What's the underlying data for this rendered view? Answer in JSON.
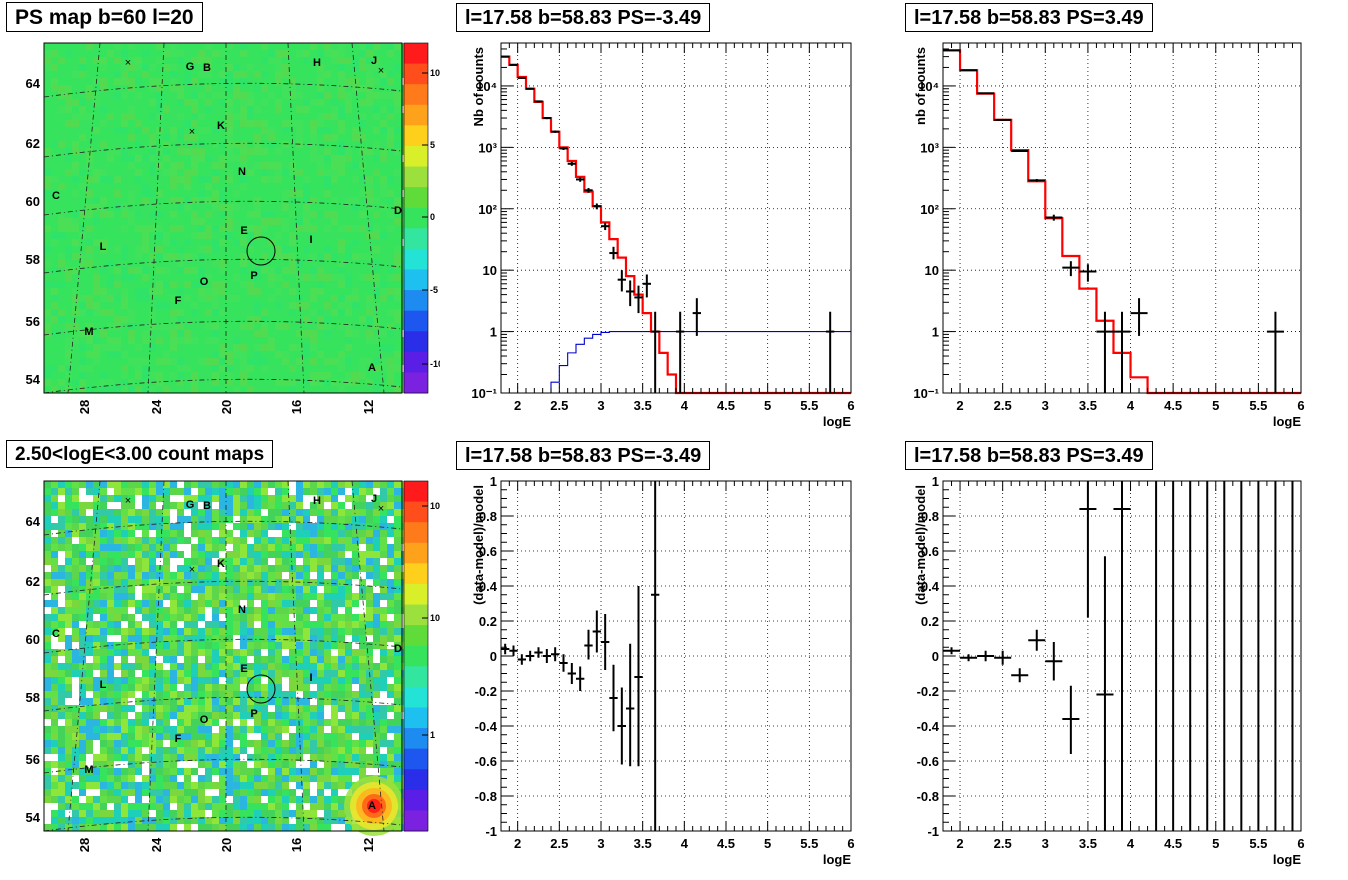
{
  "panels": {
    "map1": {
      "title": "PS map b=60 l=20",
      "lat_ticks": [
        "64",
        "62",
        "60",
        "58",
        "56",
        "54"
      ],
      "lon_ticks": [
        "28",
        "24",
        "20",
        "16",
        "12"
      ],
      "scale_ticks": [
        "10",
        "5",
        "0",
        "-5",
        "-10"
      ],
      "sources": [
        {
          "label": "G"
        },
        {
          "label": "B"
        },
        {
          "label": "H"
        },
        {
          "label": "J"
        },
        {
          "label": "K"
        },
        {
          "label": "N"
        },
        {
          "label": "C"
        },
        {
          "label": "D"
        },
        {
          "label": "E"
        },
        {
          "label": "I"
        },
        {
          "label": "L"
        },
        {
          "label": "P"
        },
        {
          "label": "O"
        },
        {
          "label": "F"
        },
        {
          "label": "M"
        },
        {
          "label": "A"
        }
      ]
    },
    "spec1": {
      "title": "l=17.58 b=58.83 PS=-3.49",
      "ylabel": "Nb of counts",
      "xlabel": "logE"
    },
    "spec2": {
      "title": "l=17.58 b=58.83 PS=3.49",
      "ylabel": "nb of counts",
      "xlabel": "logE"
    },
    "map2": {
      "title": "2.50<logE<3.00 count maps",
      "scale_ticks": [
        "10²",
        "10",
        "1"
      ]
    },
    "res1": {
      "title": "l=17.58 b=58.83 PS=-3.49",
      "ylabel": "(data-model)/model",
      "xlabel": "logE"
    },
    "res2": {
      "title": "l=17.58 b=58.83 PS=3.49",
      "ylabel": "(data-model)/model",
      "xlabel": "logE"
    }
  },
  "chart_data": [
    {
      "type": "heatmap",
      "title": "PS map b=60 l=20",
      "xlabel": "",
      "ylabel": "",
      "x_ticks": [
        28,
        24,
        20,
        16,
        12
      ],
      "y_ticks": [
        54,
        56,
        58,
        60,
        62,
        64
      ],
      "zlim": [
        -12,
        12
      ],
      "field_value": 0,
      "colors": {
        "field": "#35e35c",
        "high": "#ff2020",
        "low": "#6a1ee6"
      }
    },
    {
      "type": "line",
      "title": "l=17.58 b=58.83 PS=-3.49",
      "xlabel": "logE",
      "ylabel": "Nb of counts",
      "xlim": [
        1.8,
        6.0
      ],
      "ylim": [
        0.1,
        50000
      ],
      "log_y": true,
      "grid": true,
      "x_ticks": [
        2,
        2.5,
        3,
        3.5,
        4,
        4.5,
        5,
        5.5,
        6
      ],
      "y_ticks": [
        {
          "v": 0.1,
          "t": "10⁻¹"
        },
        {
          "v": 1,
          "t": "1"
        },
        {
          "v": 10,
          "t": "10"
        },
        {
          "v": 100,
          "t": "10²"
        },
        {
          "v": 1000,
          "t": "10³"
        },
        {
          "v": 10000,
          "t": "10⁴"
        }
      ],
      "x_edges": [
        1.8,
        1.9,
        2.0,
        2.1,
        2.2,
        2.3,
        2.4,
        2.5,
        2.6,
        2.7,
        2.8,
        2.9,
        3.0,
        3.1,
        3.2,
        3.3,
        3.4,
        3.5,
        3.6,
        3.7,
        3.8,
        3.9,
        4.0,
        4.1,
        4.2,
        4.3,
        4.4,
        4.5,
        4.6,
        4.7,
        4.8,
        4.9,
        5.0,
        5.1,
        5.2,
        5.3,
        5.4,
        5.5,
        5.6,
        5.7,
        5.8,
        5.9,
        6.0
      ],
      "series": [
        {
          "name": "model",
          "color": "#ff0000",
          "style": "step",
          "values": [
            30000,
            22000,
            14000,
            9000,
            5500,
            3000,
            1800,
            1000,
            600,
            330,
            190,
            110,
            60,
            32,
            16,
            8,
            4,
            2,
            1,
            0.45,
            0.2,
            0.1,
            0.1,
            0.1,
            0.1,
            0.1,
            0.1,
            0.1,
            0.1,
            0.1,
            0.1,
            0.1,
            0.1,
            0.1,
            0.1,
            0.1,
            0.1,
            0.1,
            0.1,
            0.1,
            0.1,
            0.1
          ]
        },
        {
          "color": "#0000cc",
          "style": "step",
          "values": [
            0.1,
            0.1,
            0.1,
            0.1,
            0.1,
            0.1,
            0.15,
            0.28,
            0.45,
            0.62,
            0.78,
            0.9,
            0.97,
            1.0,
            1,
            1,
            1,
            1,
            1,
            1,
            1,
            1,
            1,
            1,
            1,
            1,
            1,
            1,
            1,
            1,
            1,
            1,
            1,
            1,
            1,
            1,
            1,
            1,
            1,
            1,
            1,
            1
          ]
        },
        {
          "name": "data",
          "color": "#000000",
          "style": "errorbar",
          "points": [
            {
              "x": 1.85,
              "y": 30000,
              "dx": 0.05,
              "lo": 29400,
              "hi": 30600
            },
            {
              "x": 1.95,
              "y": 22000,
              "dx": 0.05,
              "lo": 21500,
              "hi": 22500
            },
            {
              "x": 2.05,
              "y": 13500,
              "dx": 0.05,
              "lo": 13100,
              "hi": 13900
            },
            {
              "x": 2.15,
              "y": 9000,
              "dx": 0.05,
              "lo": 8700,
              "hi": 9300
            },
            {
              "x": 2.25,
              "y": 5600,
              "dx": 0.05,
              "lo": 5400,
              "hi": 5800
            },
            {
              "x": 2.35,
              "y": 3000,
              "dx": 0.05,
              "lo": 2880,
              "hi": 3120
            },
            {
              "x": 2.45,
              "y": 1800,
              "dx": 0.05,
              "lo": 1720,
              "hi": 1880
            },
            {
              "x": 2.55,
              "y": 960,
              "dx": 0.05,
              "lo": 905,
              "hi": 1015
            },
            {
              "x": 2.65,
              "y": 540,
              "dx": 0.05,
              "lo": 500,
              "hi": 580
            },
            {
              "x": 2.75,
              "y": 300,
              "dx": 0.05,
              "lo": 275,
              "hi": 325
            },
            {
              "x": 2.85,
              "y": 200,
              "dx": 0.05,
              "lo": 182,
              "hi": 218
            },
            {
              "x": 2.95,
              "y": 110,
              "dx": 0.05,
              "lo": 98,
              "hi": 122
            },
            {
              "x": 3.05,
              "y": 52,
              "dx": 0.05,
              "lo": 45,
              "hi": 59
            },
            {
              "x": 3.15,
              "y": 19,
              "dx": 0.05,
              "lo": 15,
              "hi": 24
            },
            {
              "x": 3.25,
              "y": 7,
              "dx": 0.05,
              "lo": 4.5,
              "hi": 10
            },
            {
              "x": 3.35,
              "y": 4.5,
              "dx": 0.05,
              "lo": 2.6,
              "hi": 6.8
            },
            {
              "x": 3.45,
              "y": 3.6,
              "dx": 0.05,
              "lo": 2.0,
              "hi": 5.6
            },
            {
              "x": 3.55,
              "y": 6,
              "dx": 0.05,
              "lo": 3.6,
              "hi": 8.5
            },
            {
              "x": 3.65,
              "y": 1,
              "dx": 0.05,
              "lo": 0.1,
              "hi": 2.1
            },
            {
              "x": 3.95,
              "y": 1,
              "dx": 0.05,
              "lo": 0.1,
              "hi": 2.1
            },
            {
              "x": 4.15,
              "y": 2,
              "dx": 0.05,
              "lo": 0.85,
              "hi": 3.5
            },
            {
              "x": 5.75,
              "y": 1,
              "dx": 0.05,
              "lo": 0.1,
              "hi": 2.1
            }
          ]
        }
      ]
    },
    {
      "type": "line",
      "title": "l=17.58 b=58.83 PS=3.49",
      "xlabel": "logE",
      "ylabel": "nb of counts",
      "xlim": [
        1.8,
        6.0
      ],
      "ylim": [
        0.1,
        50000
      ],
      "log_y": true,
      "grid": true,
      "x_ticks": [
        2,
        2.5,
        3,
        3.5,
        4,
        4.5,
        5,
        5.5,
        6
      ],
      "y_ticks": [
        {
          "v": 0.1,
          "t": "10⁻¹"
        },
        {
          "v": 1,
          "t": "1"
        },
        {
          "v": 10,
          "t": "10"
        },
        {
          "v": 100,
          "t": "10²"
        },
        {
          "v": 1000,
          "t": "10³"
        },
        {
          "v": 10000,
          "t": "10⁴"
        }
      ],
      "x_edges": [
        1.8,
        2.0,
        2.2,
        2.4,
        2.6,
        2.8,
        3.0,
        3.2,
        3.4,
        3.6,
        3.8,
        4.0,
        4.2,
        4.4,
        4.6,
        4.8,
        5.0,
        5.2,
        5.4,
        5.6,
        5.8,
        6.0
      ],
      "series": [
        {
          "name": "model",
          "color": "#ff0000",
          "style": "step",
          "values": [
            38000,
            18000,
            7500,
            2800,
            900,
            280,
            70,
            17,
            5,
            1.5,
            0.45,
            0.18,
            0.1,
            0.1,
            0.1,
            0.1,
            0.1,
            0.1,
            0.1,
            0.1,
            0.1
          ]
        },
        {
          "name": "data",
          "color": "#000000",
          "style": "errorbar",
          "points": [
            {
              "x": 1.9,
              "y": 38000,
              "dx": 0.1,
              "lo": 37600,
              "hi": 38400
            },
            {
              "x": 2.1,
              "y": 18000,
              "dx": 0.1,
              "lo": 17700,
              "hi": 18300
            },
            {
              "x": 2.3,
              "y": 7600,
              "dx": 0.1,
              "lo": 7400,
              "hi": 7800
            },
            {
              "x": 2.5,
              "y": 2800,
              "dx": 0.1,
              "lo": 2700,
              "hi": 2900
            },
            {
              "x": 2.7,
              "y": 870,
              "dx": 0.1,
              "lo": 840,
              "hi": 900
            },
            {
              "x": 2.9,
              "y": 290,
              "dx": 0.1,
              "lo": 275,
              "hi": 305
            },
            {
              "x": 3.1,
              "y": 72,
              "dx": 0.1,
              "lo": 64,
              "hi": 80
            },
            {
              "x": 3.3,
              "y": 11,
              "dx": 0.1,
              "lo": 8,
              "hi": 14
            },
            {
              "x": 3.5,
              "y": 9.5,
              "dx": 0.1,
              "lo": 6.5,
              "hi": 12.5
            },
            {
              "x": 3.7,
              "y": 1,
              "dx": 0.1,
              "lo": 0.1,
              "hi": 2.1
            },
            {
              "x": 3.9,
              "y": 1,
              "dx": 0.1,
              "lo": 0.1,
              "hi": 2.1
            },
            {
              "x": 4.1,
              "y": 2,
              "dx": 0.1,
              "lo": 0.85,
              "hi": 3.5
            },
            {
              "x": 5.7,
              "y": 1,
              "dx": 0.1,
              "lo": 0.1,
              "hi": 2.1
            }
          ]
        }
      ]
    },
    {
      "type": "heatmap",
      "title": "2.50<logE<3.00 count maps",
      "xlabel": "",
      "ylabel": "",
      "x_ticks": [
        28,
        24,
        20,
        16,
        12
      ],
      "y_ticks": [
        54,
        56,
        58,
        60,
        62,
        64
      ],
      "zlim": [
        0.1,
        300
      ],
      "log_z": true,
      "hotspots": [
        {
          "label": "A",
          "lon": 12.3,
          "lat": 54.6,
          "value": 200
        }
      ],
      "colors": {
        "field": "#43d35a",
        "high": "#ff2020",
        "low": "#6a1ee6"
      }
    },
    {
      "type": "scatter",
      "title": "l=17.58 b=58.83 PS=-3.49",
      "xlabel": "logE",
      "ylabel": "(data-model)/model",
      "xlim": [
        1.8,
        6.0
      ],
      "ylim": [
        -1,
        1
      ],
      "grid": true,
      "x_ticks": [
        2,
        2.5,
        3,
        3.5,
        4,
        4.5,
        5,
        5.5,
        6
      ],
      "y_ticks": [
        -1,
        -0.8,
        -0.6,
        -0.4,
        -0.2,
        0,
        0.2,
        0.4,
        0.6,
        0.8,
        1
      ],
      "points": [
        {
          "x": 1.85,
          "y": 0.04,
          "dx": 0.05,
          "lo": 0.01,
          "hi": 0.07
        },
        {
          "x": 1.95,
          "y": 0.03,
          "dx": 0.05,
          "lo": 0.0,
          "hi": 0.06
        },
        {
          "x": 2.05,
          "y": -0.02,
          "dx": 0.05,
          "lo": -0.05,
          "hi": 0.01
        },
        {
          "x": 2.15,
          "y": 0.0,
          "dx": 0.05,
          "lo": -0.03,
          "hi": 0.03
        },
        {
          "x": 2.25,
          "y": 0.02,
          "dx": 0.05,
          "lo": -0.01,
          "hi": 0.05
        },
        {
          "x": 2.35,
          "y": 0.0,
          "dx": 0.05,
          "lo": -0.04,
          "hi": 0.04
        },
        {
          "x": 2.45,
          "y": 0.01,
          "dx": 0.05,
          "lo": -0.03,
          "hi": 0.05
        },
        {
          "x": 2.55,
          "y": -0.04,
          "dx": 0.05,
          "lo": -0.09,
          "hi": 0.01
        },
        {
          "x": 2.65,
          "y": -0.1,
          "dx": 0.05,
          "lo": -0.16,
          "hi": -0.04
        },
        {
          "x": 2.75,
          "y": -0.13,
          "dx": 0.05,
          "lo": -0.2,
          "hi": -0.06
        },
        {
          "x": 2.85,
          "y": 0.06,
          "dx": 0.05,
          "lo": -0.02,
          "hi": 0.15
        },
        {
          "x": 2.95,
          "y": 0.14,
          "dx": 0.05,
          "lo": 0.02,
          "hi": 0.26
        },
        {
          "x": 3.05,
          "y": 0.08,
          "dx": 0.05,
          "lo": -0.08,
          "hi": 0.24
        },
        {
          "x": 3.15,
          "y": -0.24,
          "dx": 0.05,
          "lo": -0.43,
          "hi": -0.05
        },
        {
          "x": 3.25,
          "y": -0.4,
          "dx": 0.05,
          "lo": -0.62,
          "hi": -0.18
        },
        {
          "x": 3.35,
          "y": -0.3,
          "dx": 0.05,
          "lo": -0.63,
          "hi": 0.07
        },
        {
          "x": 3.45,
          "y": -0.12,
          "dx": 0.05,
          "lo": -0.63,
          "hi": 0.4
        },
        {
          "x": 3.65,
          "y": 0.35,
          "dx": 0.05,
          "lo": -1.0,
          "hi": 1.0
        }
      ]
    },
    {
      "type": "scatter",
      "title": "l=17.58 b=58.83 PS=3.49",
      "xlabel": "logE",
      "ylabel": "(data-model)/model",
      "xlim": [
        1.8,
        6.0
      ],
      "ylim": [
        -1,
        1
      ],
      "grid": true,
      "x_ticks": [
        2,
        2.5,
        3,
        3.5,
        4,
        4.5,
        5,
        5.5,
        6
      ],
      "y_ticks": [
        -1,
        -0.8,
        -0.6,
        -0.4,
        -0.2,
        0,
        0.2,
        0.4,
        0.6,
        0.8,
        1
      ],
      "points": [
        {
          "x": 1.9,
          "y": 0.03,
          "dx": 0.1,
          "lo": 0.01,
          "hi": 0.05
        },
        {
          "x": 2.1,
          "y": -0.01,
          "dx": 0.1,
          "lo": -0.03,
          "hi": 0.01
        },
        {
          "x": 2.3,
          "y": 0.0,
          "dx": 0.1,
          "lo": -0.03,
          "hi": 0.03
        },
        {
          "x": 2.5,
          "y": -0.01,
          "dx": 0.1,
          "lo": -0.05,
          "hi": 0.03
        },
        {
          "x": 2.7,
          "y": -0.11,
          "dx": 0.1,
          "lo": -0.15,
          "hi": -0.07
        },
        {
          "x": 2.9,
          "y": 0.09,
          "dx": 0.1,
          "lo": 0.03,
          "hi": 0.15
        },
        {
          "x": 3.1,
          "y": -0.03,
          "dx": 0.1,
          "lo": -0.14,
          "hi": 0.08
        },
        {
          "x": 3.3,
          "y": -0.36,
          "dx": 0.1,
          "lo": -0.56,
          "hi": -0.17
        },
        {
          "x": 3.5,
          "y": 0.84,
          "dx": 0.1,
          "lo": 0.22,
          "hi": 1.0
        },
        {
          "x": 3.7,
          "y": -0.22,
          "dx": 0.1,
          "lo": -1.0,
          "hi": 0.57
        },
        {
          "x": 3.9,
          "y": 0.84,
          "dx": 0.1,
          "lo": -1.0,
          "hi": 1.0
        },
        {
          "x": 4.3,
          "y": 1.0,
          "dx": 0.0,
          "lo": -1.0,
          "hi": 1.0
        },
        {
          "x": 4.5,
          "y": 1.0,
          "dx": 0.0,
          "lo": -1.0,
          "hi": 1.0
        },
        {
          "x": 4.7,
          "y": 1.0,
          "dx": 0.0,
          "lo": -1.0,
          "hi": 1.0
        },
        {
          "x": 4.9,
          "y": 1.0,
          "dx": 0.0,
          "lo": -1.0,
          "hi": 1.0
        },
        {
          "x": 5.1,
          "y": 1.0,
          "dx": 0.0,
          "lo": -1.0,
          "hi": 1.0
        },
        {
          "x": 5.3,
          "y": 1.0,
          "dx": 0.0,
          "lo": -1.0,
          "hi": 1.0
        },
        {
          "x": 5.5,
          "y": 1.0,
          "dx": 0.0,
          "lo": -1.0,
          "hi": 1.0
        },
        {
          "x": 5.7,
          "y": 1.0,
          "dx": 0.0,
          "lo": -1.0,
          "hi": 1.0
        },
        {
          "x": 5.9,
          "y": 1.0,
          "dx": 0.0,
          "lo": -1.0,
          "hi": 1.0
        }
      ]
    }
  ]
}
